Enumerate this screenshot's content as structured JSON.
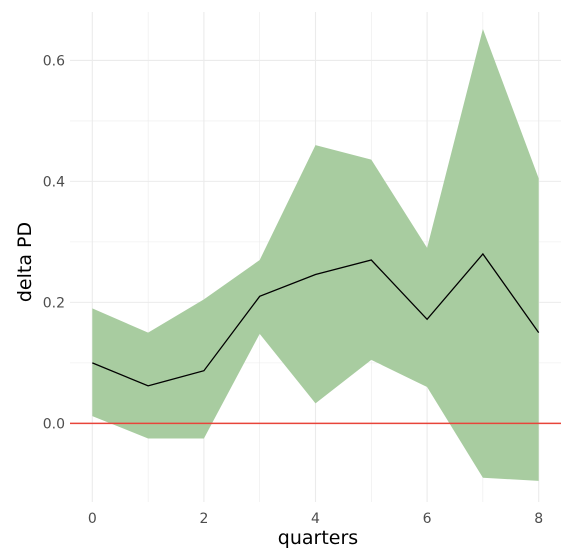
{
  "chart_data": {
    "type": "area",
    "xlabel": "quarters",
    "ylabel": "delta PD",
    "xlim": [
      -0.4,
      8.4
    ],
    "ylim": [
      -0.13,
      0.68
    ],
    "x_ticks": [
      0,
      2,
      4,
      6,
      8
    ],
    "y_ticks": [
      0.0,
      0.2,
      0.4,
      0.6
    ],
    "x_tick_labels": [
      "0",
      "2",
      "4",
      "6",
      "8"
    ],
    "y_tick_labels": [
      "0.0",
      "0.2",
      "0.4",
      "0.6"
    ],
    "grid": true,
    "x": [
      0,
      1,
      2,
      3,
      4,
      5,
      6,
      7,
      8
    ],
    "series": [
      {
        "role": "estimate",
        "values": [
          0.1,
          0.062,
          0.087,
          0.21,
          0.246,
          0.27,
          0.172,
          0.28,
          0.15
        ]
      },
      {
        "role": "upper_bound",
        "values": [
          0.19,
          0.15,
          0.205,
          0.27,
          0.46,
          0.436,
          0.29,
          0.652,
          0.405
        ]
      },
      {
        "role": "lower_bound",
        "values": [
          0.012,
          -0.025,
          -0.025,
          0.148,
          0.033,
          0.105,
          0.06,
          -0.09,
          -0.095
        ]
      }
    ],
    "reference_line": {
      "y": 0.0,
      "color": "#e8443a"
    },
    "colors": {
      "band": "#a8cca0",
      "line": "#000000",
      "grid": "#ebebeb"
    }
  }
}
